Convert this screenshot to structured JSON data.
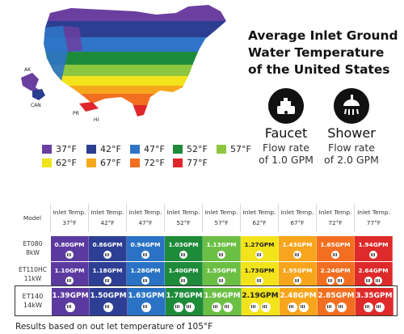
{
  "title": "Average Inlet Ground Water Temperature of the United States",
  "map": {
    "labels": [
      "AK",
      "CAN",
      "PR",
      "HI"
    ]
  },
  "devices": [
    {
      "name": "Faucet",
      "rate_line1": "Flow rate",
      "rate_line2": "of 1.0 GPM",
      "icon": "faucet-icon"
    },
    {
      "name": "Shower",
      "rate_line1": "Flow rate",
      "rate_line2": "of 2.0 GPM",
      "icon": "shower-head-icon"
    }
  ],
  "legend": [
    {
      "label": "37°F",
      "color": "#6b3fa0"
    },
    {
      "label": "42°F",
      "color": "#2c3e91"
    },
    {
      "label": "47°F",
      "color": "#2f74c6"
    },
    {
      "label": "52°F",
      "color": "#1e8b3a"
    },
    {
      "label": "57°F",
      "color": "#8dc63f"
    },
    {
      "label": "62°F",
      "color": "#f2e31b"
    },
    {
      "label": "67°F",
      "color": "#f6a81d"
    },
    {
      "label": "72°F",
      "color": "#f26f21"
    },
    {
      "label": "77°F",
      "color": "#e0262b"
    }
  ],
  "table": {
    "model_header": "Model",
    "columns": [
      {
        "line1": "Inlet Temp.",
        "line2": "37°F",
        "color": "#5b3aa0"
      },
      {
        "line1": "Inlet Temp.",
        "line2": "42°F",
        "color": "#2d3f94"
      },
      {
        "line1": "Inlet Temp.",
        "line2": "47°F",
        "color": "#2a73c4"
      },
      {
        "line1": "Inlet Temp.",
        "line2": "52°F",
        "color": "#1e8b3a"
      },
      {
        "line1": "Inlet Temp.",
        "line2": "57°F",
        "color": "#6cbf45"
      },
      {
        "line1": "Inlet Temp.",
        "line2": "62°F",
        "color": "#f2e31b"
      },
      {
        "line1": "Inlet Temp.",
        "line2": "67°F",
        "color": "#f7a51c"
      },
      {
        "line1": "Inlet Temp.",
        "line2": "72°F",
        "color": "#f26f21"
      },
      {
        "line1": "Inlet Temp.",
        "line2": "77°F",
        "color": "#de2a2a"
      }
    ],
    "rows": [
      {
        "model_line1": "ET080",
        "model_line2": "8kW",
        "values": [
          "0.80GPM",
          "0.86GPM",
          "0.94GPM",
          "1.03GPM",
          "1.13GPM",
          "1.27GPM",
          "1.43GPM",
          "1.65GPM",
          "1.94GPM"
        ],
        "shower_heads": [
          0,
          0,
          0,
          0,
          0,
          0,
          0,
          0,
          0
        ]
      },
      {
        "model_line1": "ET110HC",
        "model_line2": "11kW",
        "values": [
          "1.10GPM",
          "1.18GPM",
          "1.28GPM",
          "1.40GPM",
          "1.55GPM",
          "1.73GPM",
          "1.95GPM",
          "2.24GPM",
          "2.64GPM"
        ],
        "shower_heads": [
          0,
          0,
          0,
          0,
          0,
          0,
          0,
          1,
          1
        ]
      },
      {
        "model_line1": "ET140",
        "model_line2": "14kW",
        "values": [
          "1.39GPM",
          "1.50GPM",
          "1.63GPM",
          "1.78GPM",
          "1.96GPM",
          "2.19GPM",
          "2.48GPM",
          "2.85GPM",
          "3.35GPM"
        ],
        "shower_heads": [
          0,
          0,
          0,
          1,
          1,
          1,
          1,
          1,
          1
        ]
      }
    ]
  },
  "footer": "Results based on out let temperature of 105°F"
}
